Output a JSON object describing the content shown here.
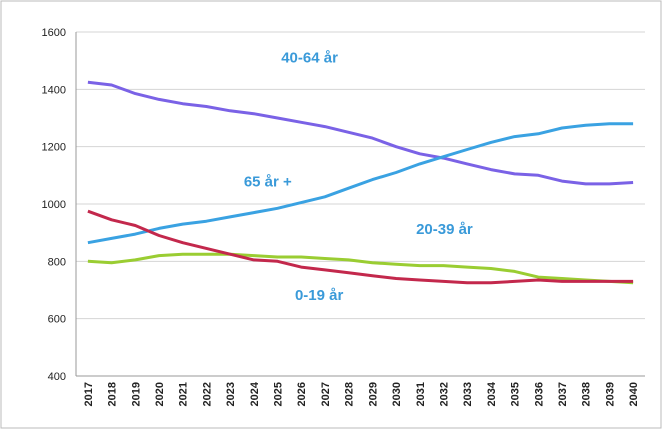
{
  "chart_data": {
    "type": "line",
    "categories": [
      "2017",
      "2018",
      "2019",
      "2020",
      "2021",
      "2022",
      "2023",
      "2024",
      "2025",
      "2026",
      "2027",
      "2028",
      "2029",
      "2030",
      "2031",
      "2032",
      "2033",
      "2034",
      "2035",
      "2036",
      "2037",
      "2038",
      "2039",
      "2040"
    ],
    "series": [
      {
        "name": "40-64 år",
        "color": "#7a62e6",
        "values": [
          1425,
          1415,
          1385,
          1365,
          1350,
          1340,
          1325,
          1315,
          1300,
          1285,
          1270,
          1250,
          1230,
          1200,
          1175,
          1160,
          1140,
          1120,
          1105,
          1100,
          1080,
          1070,
          1070,
          1075
        ]
      },
      {
        "name": "65 år +",
        "color": "#3aa2e2",
        "values": [
          865,
          880,
          895,
          915,
          930,
          940,
          955,
          970,
          985,
          1005,
          1025,
          1055,
          1085,
          1110,
          1140,
          1165,
          1190,
          1215,
          1235,
          1245,
          1265,
          1275,
          1280,
          1280
        ]
      },
      {
        "name": "20-39 år",
        "color": "#9acd32",
        "values": [
          800,
          795,
          805,
          820,
          825,
          825,
          825,
          820,
          815,
          815,
          810,
          805,
          795,
          790,
          785,
          785,
          780,
          775,
          765,
          745,
          740,
          735,
          730,
          725
        ]
      },
      {
        "name": "0-19 år",
        "color": "#c3284c",
        "values": [
          975,
          945,
          925,
          890,
          865,
          845,
          825,
          805,
          800,
          780,
          770,
          760,
          750,
          740,
          735,
          730,
          725,
          725,
          730,
          735,
          730,
          730,
          730,
          730
        ]
      }
    ],
    "ylim": [
      400,
      1600
    ],
    "yticks": [
      400,
      600,
      800,
      1000,
      1200,
      1400,
      1600
    ],
    "grid": true
  }
}
